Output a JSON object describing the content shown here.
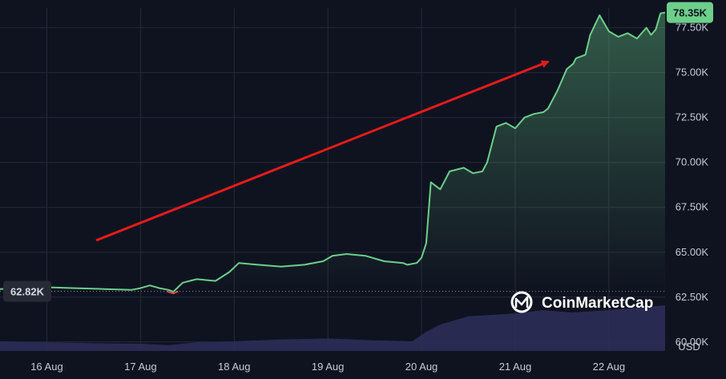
{
  "chart_data": {
    "type": "line",
    "title": "",
    "xlabel": "",
    "ylabel": "",
    "y_axis_currency_label": "USD",
    "grid": true,
    "ylim": [
      59500,
      78600
    ],
    "y_ticks": [
      {
        "value": 60000,
        "label": "60.00K"
      },
      {
        "value": 62500,
        "label": "62.50K"
      },
      {
        "value": 65000,
        "label": "65.00K"
      },
      {
        "value": 67500,
        "label": "67.50K"
      },
      {
        "value": 70000,
        "label": "70.00K"
      },
      {
        "value": 72500,
        "label": "72.50K"
      },
      {
        "value": 75000,
        "label": "75.00K"
      },
      {
        "value": 77500,
        "label": "77.50K"
      }
    ],
    "x_ticks": [
      "16 Aug",
      "17 Aug",
      "18 Aug",
      "19 Aug",
      "20 Aug",
      "21 Aug",
      "22 Aug"
    ],
    "x_range_days": [
      15.5,
      22.6
    ],
    "start_price_label": "62.82K",
    "start_price": 62820,
    "current_price_label": "78.35K",
    "current_price": 78350,
    "series": [
      {
        "x": [
          15.5,
          15.8,
          16.0,
          16.3,
          16.6,
          16.9,
          17.0,
          17.1,
          17.2,
          17.3,
          17.35,
          17.45,
          17.6,
          17.8,
          17.95,
          18.05,
          18.25,
          18.5,
          18.75,
          18.95,
          19.05,
          19.2,
          19.4,
          19.6,
          19.8,
          19.85,
          19.95,
          20.0,
          20.05,
          20.1,
          20.2,
          20.3,
          20.45,
          20.55,
          20.65,
          20.7,
          20.8,
          20.9,
          21.0,
          21.1,
          21.2,
          21.3,
          21.35,
          21.45,
          21.55,
          21.62,
          21.65,
          21.75,
          21.8,
          21.9,
          22.0,
          22.1,
          22.2,
          22.3,
          22.4,
          22.45,
          22.5,
          22.55,
          22.6
        ],
        "y": [
          62950,
          63000,
          63050,
          63000,
          62950,
          62900,
          63000,
          63150,
          63000,
          62900,
          62800,
          63300,
          63500,
          63400,
          63900,
          64400,
          64300,
          64200,
          64300,
          64500,
          64800,
          64900,
          64800,
          64500,
          64400,
          64300,
          64400,
          64700,
          65500,
          68900,
          68500,
          69500,
          69700,
          69400,
          69500,
          70000,
          72000,
          72200,
          71900,
          72500,
          72700,
          72800,
          73000,
          74000,
          75200,
          75500,
          75800,
          76000,
          77100,
          78200,
          77300,
          77000,
          77200,
          76900,
          77500,
          77100,
          77400,
          78300,
          78350
        ]
      }
    ],
    "volume_relative": {
      "x": [
        15.5,
        16.0,
        16.5,
        17.0,
        17.3,
        17.6,
        18.0,
        18.5,
        19.0,
        19.5,
        19.9,
        20.05,
        20.2,
        20.5,
        21.0,
        21.3,
        21.6,
        22.0,
        22.3,
        22.6
      ],
      "y": [
        0.2,
        0.18,
        0.16,
        0.15,
        0.12,
        0.18,
        0.2,
        0.24,
        0.26,
        0.22,
        0.2,
        0.4,
        0.55,
        0.72,
        0.78,
        0.85,
        0.8,
        0.85,
        0.9,
        0.95
      ]
    },
    "annotation": "red-trend-arrow"
  },
  "watermark": {
    "brand": "CoinMarketCap",
    "icon": "coinmarketcap-logo-icon"
  },
  "colors": {
    "background": "#0f1320",
    "line_up": "#6ccf8a",
    "line_down": "#e0474f",
    "badge_bg": "#6ccf8a",
    "badge_text": "#0f1320",
    "start_badge_bg": "#262a36",
    "start_badge_text": "#d6dae3",
    "grid": "#252a38",
    "volume": "#2c2e56",
    "arrow": "#e51b1b"
  }
}
